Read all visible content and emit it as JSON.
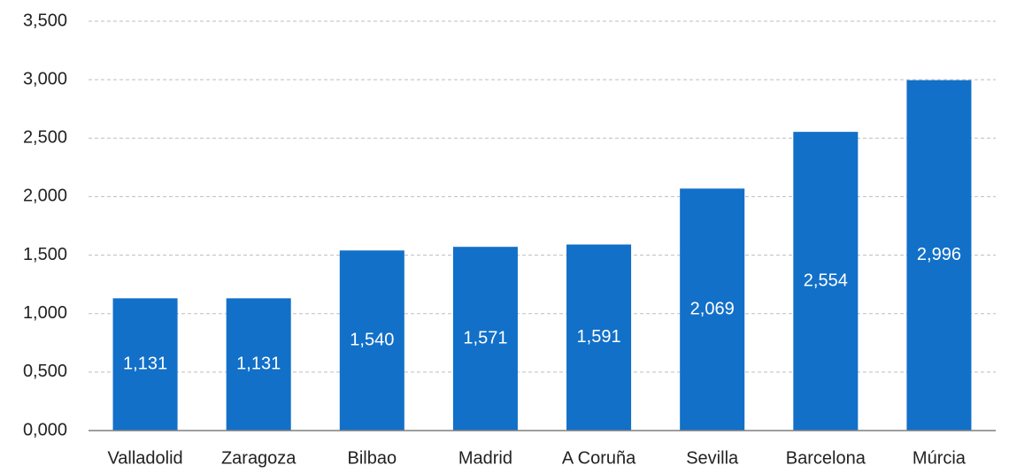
{
  "chart_data": {
    "type": "bar",
    "categories": [
      "Valladolid",
      "Zaragoza",
      "Bilbao",
      "Madrid",
      "A Coruña",
      "Sevilla",
      "Barcelona",
      "Múrcia"
    ],
    "values": [
      1.131,
      1.131,
      1.54,
      1.571,
      1.591,
      2.069,
      2.554,
      2.996
    ],
    "value_labels": [
      "1,131",
      "1,131",
      "1,540",
      "1,571",
      "1,591",
      "2,069",
      "2,554",
      "2,996"
    ],
    "color": "#1270c8",
    "ylim": [
      0,
      3.5
    ],
    "yticks": [
      {
        "value": 0,
        "label": "0,000"
      },
      {
        "value": 0.5,
        "label": "0,500"
      },
      {
        "value": 1,
        "label": "1,000"
      },
      {
        "value": 1.5,
        "label": "1,500"
      },
      {
        "value": 2,
        "label": "2,000"
      },
      {
        "value": 2.5,
        "label": "2,500"
      },
      {
        "value": 3,
        "label": "3,000"
      },
      {
        "value": 3.5,
        "label": "3,500"
      }
    ],
    "grid": true
  }
}
